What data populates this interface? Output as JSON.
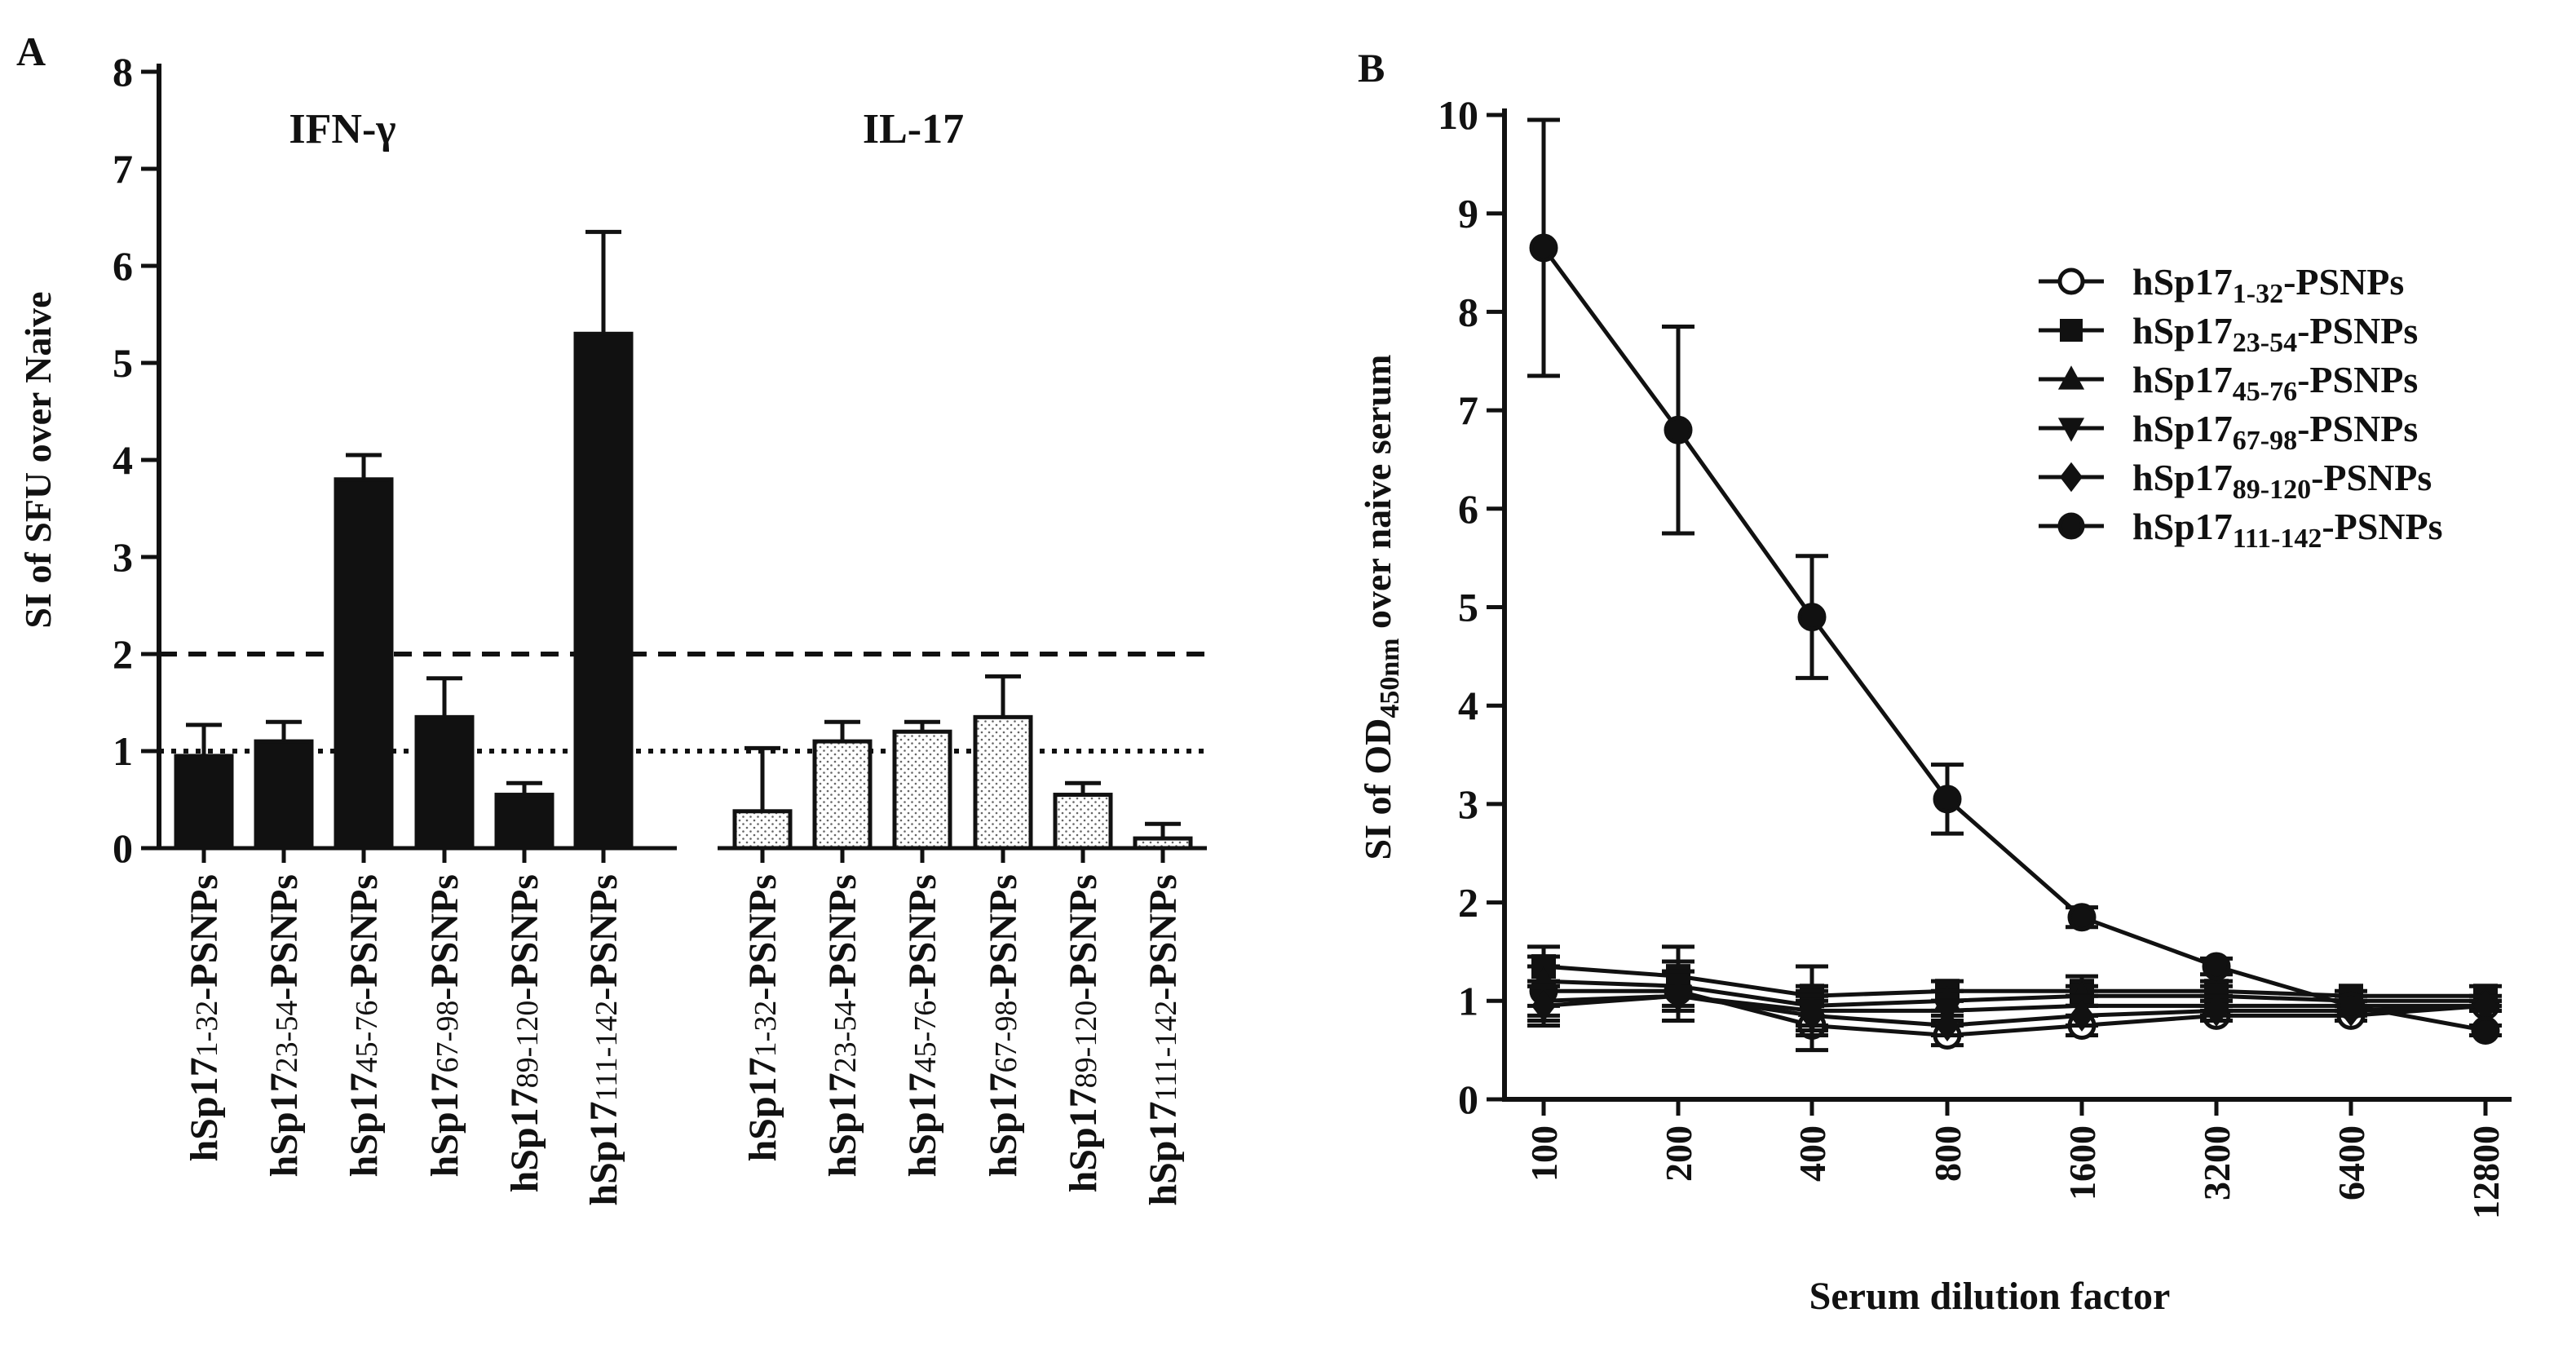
{
  "colors": {
    "ink": "#111111",
    "paper": "#ffffff",
    "stipple": "#777777"
  },
  "chart_data": [
    {
      "panel": "A",
      "type": "bar",
      "ylabel": "SI of SFU over Naive",
      "ylim": [
        0,
        8
      ],
      "yticks": [
        0,
        1,
        2,
        3,
        4,
        5,
        6,
        7,
        8
      ],
      "thresholds": [
        {
          "value": 2,
          "style": "dashed"
        },
        {
          "value": 1,
          "style": "dotted"
        }
      ],
      "groups": [
        {
          "name": "IFN-γ",
          "fill": "solid",
          "bars": [
            {
              "base": "hSp17",
              "sub": "1-32",
              "suffix": "-PSNPs",
              "value": 0.95,
              "error": 0.32
            },
            {
              "base": "hSp17",
              "sub": "23-54",
              "suffix": "-PSNPs",
              "value": 1.1,
              "error": 0.2
            },
            {
              "base": "hSp17",
              "sub": "45-76",
              "suffix": "-PSNPs",
              "value": 3.8,
              "error": 0.25
            },
            {
              "base": "hSp17",
              "sub": "67-98",
              "suffix": "-PSNPs",
              "value": 1.35,
              "error": 0.4
            },
            {
              "base": "hSp17",
              "sub": "89-120",
              "suffix": "-PSNPs",
              "value": 0.55,
              "error": 0.12
            },
            {
              "base": "hSp17",
              "sub": "111-142",
              "suffix": "-PSNPs",
              "value": 5.3,
              "error": 1.05
            }
          ]
        },
        {
          "name": "IL-17",
          "fill": "dotted",
          "bars": [
            {
              "base": "hSp17",
              "sub": "1-32",
              "suffix": "-PSNPs",
              "value": 0.38,
              "error": 0.65
            },
            {
              "base": "hSp17",
              "sub": "23-54",
              "suffix": "-PSNPs",
              "value": 1.1,
              "error": 0.2
            },
            {
              "base": "hSp17",
              "sub": "45-76",
              "suffix": "-PSNPs",
              "value": 1.2,
              "error": 0.1
            },
            {
              "base": "hSp17",
              "sub": "67-98",
              "suffix": "-PSNPs",
              "value": 1.35,
              "error": 0.42
            },
            {
              "base": "hSp17",
              "sub": "89-120",
              "suffix": "-PSNPs",
              "value": 0.55,
              "error": 0.12
            },
            {
              "base": "hSp17",
              "sub": "111-142",
              "suffix": "-PSNPs",
              "value": 0.1,
              "error": 0.15
            }
          ]
        }
      ]
    },
    {
      "panel": "B",
      "type": "line",
      "xlabel": "Serum dilution factor",
      "ylabel_prefix": "SI of OD",
      "ylabel_sub": "450nm",
      "ylabel_suffix": " over naive serum",
      "ylim": [
        0,
        10
      ],
      "yticks": [
        0,
        1,
        2,
        3,
        4,
        5,
        6,
        7,
        8,
        9,
        10
      ],
      "categories": [
        "100",
        "200",
        "400",
        "800",
        "1600",
        "3200",
        "6400",
        "12800"
      ],
      "series": [
        {
          "base": "hSp17",
          "sub": "1-32",
          "suffix": "-PSNPs",
          "marker": "circle-open",
          "values": [
            1.1,
            1.1,
            0.75,
            0.65,
            0.75,
            0.85,
            0.85,
            0.95
          ],
          "errors": [
            0.25,
            0.3,
            0.25,
            0.1,
            0.1,
            0.05,
            0.05,
            0.05
          ]
        },
        {
          "base": "hSp17",
          "sub": "23-54",
          "suffix": "-PSNPs",
          "marker": "square",
          "values": [
            1.35,
            1.25,
            1.05,
            1.1,
            1.1,
            1.1,
            1.05,
            1.05
          ],
          "errors": [
            0.2,
            0.3,
            0.3,
            0.1,
            0.15,
            0.1,
            0.05,
            0.1
          ]
        },
        {
          "base": "hSp17",
          "sub": "45-76",
          "suffix": "-PSNPs",
          "marker": "triangle-up",
          "values": [
            1.2,
            1.15,
            0.95,
            1.0,
            1.05,
            1.05,
            1.0,
            1.0
          ],
          "errors": [
            0.25,
            0.25,
            0.2,
            0.1,
            0.1,
            0.1,
            0.05,
            0.05
          ]
        },
        {
          "base": "hSp17",
          "sub": "67-98",
          "suffix": "-PSNPs",
          "marker": "triangle-down",
          "values": [
            1.0,
            1.05,
            0.9,
            0.9,
            0.95,
            0.95,
            0.95,
            0.95
          ],
          "errors": [
            0.2,
            0.25,
            0.2,
            0.1,
            0.1,
            0.1,
            0.05,
            0.05
          ]
        },
        {
          "base": "hSp17",
          "sub": "89-120",
          "suffix": "-PSNPs",
          "marker": "diamond",
          "values": [
            0.95,
            1.05,
            0.85,
            0.75,
            0.85,
            0.9,
            0.9,
            0.95
          ],
          "errors": [
            0.2,
            0.25,
            0.2,
            0.1,
            0.1,
            0.1,
            0.05,
            0.05
          ]
        },
        {
          "base": "hSp17",
          "sub": "111-142",
          "suffix": "-PSNPs",
          "marker": "circle",
          "values": [
            8.65,
            6.8,
            4.9,
            3.05,
            1.85,
            1.35,
            0.95,
            0.7
          ],
          "errors": [
            1.3,
            1.05,
            0.62,
            0.35,
            0.1,
            0.08,
            0.05,
            0.05
          ]
        }
      ]
    }
  ]
}
